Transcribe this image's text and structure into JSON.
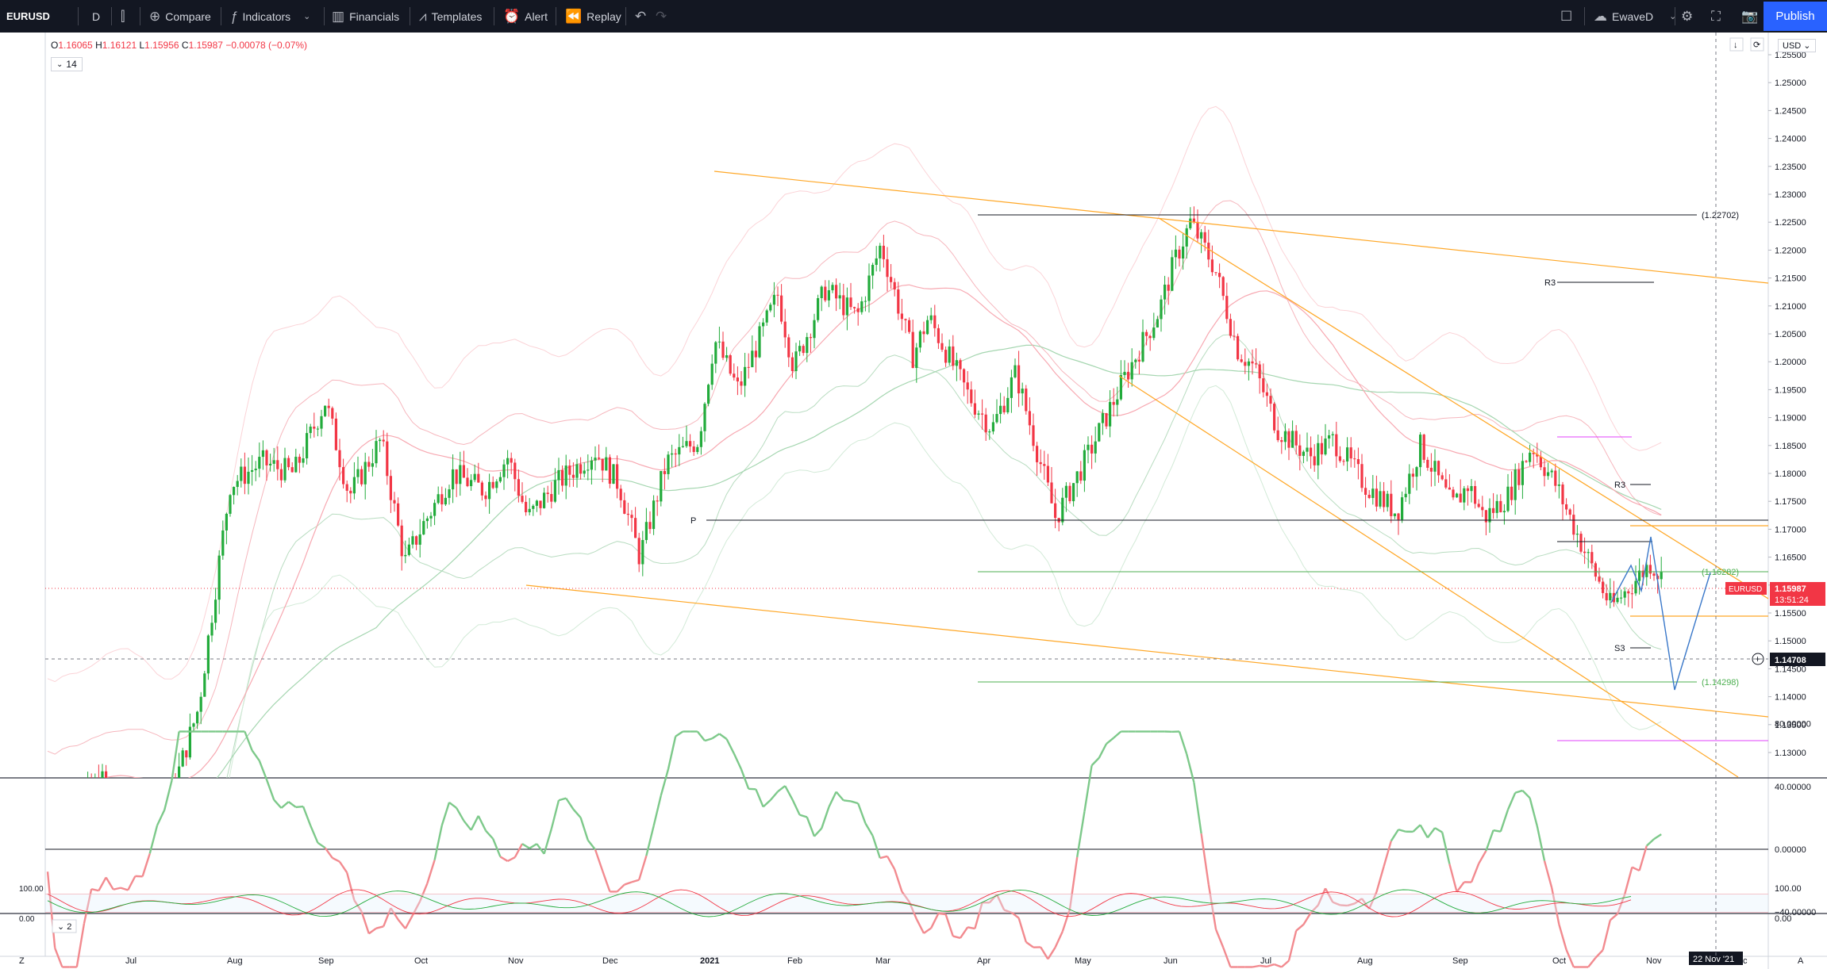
{
  "toolbar": {
    "symbol": "EURUSD",
    "interval": "D",
    "compare": "Compare",
    "indicators": "Indicators",
    "financials": "Financials",
    "templates": "Templates",
    "alert": "Alert",
    "replay": "Replay",
    "layout_name": "EwaveD",
    "publish": "Publish"
  },
  "legend": {
    "o_label": "O",
    "o": "1.16065",
    "h_label": "H",
    "h": "1.16121",
    "l_label": "L",
    "l": "1.15956",
    "c_label": "C",
    "c": "1.15987",
    "change": "−0.00078 (−0.07%)",
    "length": "14"
  },
  "currency": "USD",
  "price_axis": [
    "1.25500",
    "1.25000",
    "1.24500",
    "1.24000",
    "1.23500",
    "1.23000",
    "1.22500",
    "1.22000",
    "1.21500",
    "1.21000",
    "1.20500",
    "1.20000",
    "1.19500",
    "1.19000",
    "1.18500",
    "1.18000",
    "1.17500",
    "1.17000",
    "1.16500",
    "1.16000",
    "1.15500",
    "1.15000",
    "1.14500",
    "1.14000",
    "1.13500",
    "1.13000"
  ],
  "osc_axis": [
    "80.00000",
    "40.00000",
    "0.00000",
    "−40.00000"
  ],
  "stoch_axis": [
    "100.00",
    "0.00"
  ],
  "time_axis": [
    "Jul",
    "Aug",
    "Sep",
    "Oct",
    "Nov",
    "Dec",
    "2021",
    "Feb",
    "Mar",
    "Apr",
    "May",
    "Jun",
    "Jul",
    "Aug",
    "Sep",
    "Oct",
    "Nov",
    "Dec"
  ],
  "labels": {
    "top_fib": "(1.22702)",
    "mid_fib": "(1.16282)",
    "low_fib": "(1.14298)",
    "r3_a": "R3",
    "r3_b": "R3",
    "s3": "S3",
    "p": "P",
    "sym_tag": "EURUSD",
    "last_price": "1.15987",
    "countdown": "13:51:24",
    "crosshair_price": "1.14708",
    "crosshair_date": "22 Nov '21",
    "stoch_len": "2",
    "z_btn": "Z",
    "a_btn": "A"
  },
  "colors": {
    "up": "#22ab3b",
    "down": "#f23645",
    "trend": "#ffa726",
    "pivot": "#131722",
    "fib": "#4caf50",
    "magenta": "#e040fb",
    "projection": "#3a78c9",
    "accent": "#2962ff"
  },
  "chart_data": {
    "type": "candlestick",
    "symbol": "EURUSD",
    "interval": "D",
    "ylim": [
      1.128,
      1.258
    ],
    "last": 1.15987,
    "levels": [
      1.22702,
      1.16282,
      1.14298
    ]
  }
}
